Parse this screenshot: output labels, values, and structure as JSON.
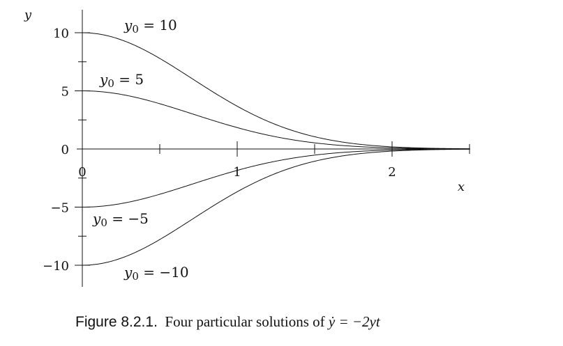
{
  "chart_data": {
    "type": "line",
    "xlabel": "x",
    "ylabel": "y",
    "xlim": [
      0,
      2.5
    ],
    "ylim": [
      -10,
      10
    ],
    "x_ticks": [
      0,
      0.5,
      1,
      1.5,
      2,
      2.5
    ],
    "x_tick_labels": [
      "0",
      "",
      "1",
      "",
      "2",
      ""
    ],
    "y_ticks": [
      -10,
      -7.5,
      -5,
      -2.5,
      0,
      2.5,
      5,
      7.5,
      10
    ],
    "y_tick_labels": [
      "−10",
      "",
      "−5",
      "",
      "0",
      "",
      "5",
      "",
      "10"
    ],
    "grid": false,
    "formula": "y = y0 * exp(-x^2)",
    "series": [
      {
        "y0": 10,
        "label_sub": "0",
        "label_eq": "= 10",
        "x": [
          0,
          0.25,
          0.5,
          0.75,
          1,
          1.25,
          1.5,
          1.75,
          2,
          2.25,
          2.5
        ],
        "y": [
          10,
          9.39,
          7.79,
          5.7,
          3.68,
          2.1,
          1.05,
          0.47,
          0.18,
          0.06,
          0.02
        ]
      },
      {
        "y0": 5,
        "label_sub": "0",
        "label_eq": "= 5",
        "x": [
          0,
          0.25,
          0.5,
          0.75,
          1,
          1.25,
          1.5,
          1.75,
          2,
          2.25,
          2.5
        ],
        "y": [
          5,
          4.7,
          3.89,
          2.85,
          1.84,
          1.05,
          0.53,
          0.23,
          0.09,
          0.03,
          0.01
        ]
      },
      {
        "y0": -5,
        "label_sub": "0",
        "label_eq": "= −5",
        "x": [
          0,
          0.25,
          0.5,
          0.75,
          1,
          1.25,
          1.5,
          1.75,
          2,
          2.25,
          2.5
        ],
        "y": [
          -5,
          -4.7,
          -3.89,
          -2.85,
          -1.84,
          -1.05,
          -0.53,
          -0.23,
          -0.09,
          -0.03,
          -0.01
        ]
      },
      {
        "y0": -10,
        "label_sub": "0",
        "label_eq": "= −10",
        "x": [
          0,
          0.25,
          0.5,
          0.75,
          1,
          1.25,
          1.5,
          1.75,
          2,
          2.25,
          2.5
        ],
        "y": [
          -10,
          -9.39,
          -7.79,
          -5.7,
          -3.68,
          -2.1,
          -1.05,
          -0.47,
          -0.18,
          -0.06,
          -0.02
        ]
      }
    ]
  },
  "caption": {
    "figure": "Figure 8.2.1.",
    "text": "Four particular solutions of",
    "equation": "ẏ = −2yt"
  }
}
